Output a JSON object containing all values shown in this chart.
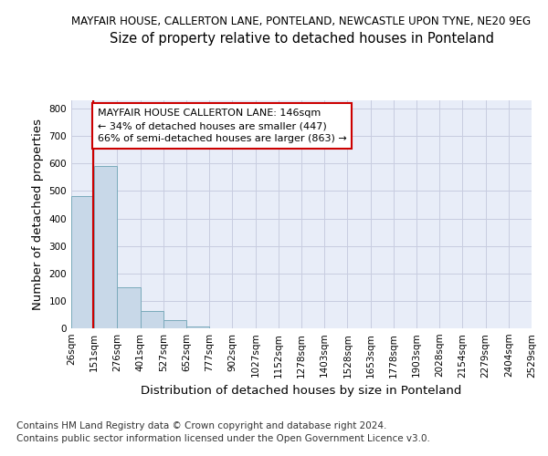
{
  "title1": "MAYFAIR HOUSE, CALLERTON LANE, PONTELAND, NEWCASTLE UPON TYNE, NE20 9EG",
  "title2": "Size of property relative to detached houses in Ponteland",
  "xlabel": "Distribution of detached houses by size in Ponteland",
  "ylabel": "Number of detached properties",
  "footer1": "Contains HM Land Registry data © Crown copyright and database right 2024.",
  "footer2": "Contains public sector information licensed under the Open Government Licence v3.0.",
  "bin_edges": [
    26,
    151,
    276,
    401,
    527,
    652,
    777,
    902,
    1027,
    1152,
    1278,
    1403,
    1528,
    1653,
    1778,
    1903,
    2028,
    2154,
    2279,
    2404,
    2529
  ],
  "bar_heights": [
    480,
    590,
    150,
    62,
    30,
    8,
    0,
    0,
    0,
    0,
    0,
    0,
    0,
    0,
    0,
    0,
    0,
    0,
    0,
    0
  ],
  "bar_color": "#c8d8e8",
  "bar_edge_color": "#7aaabb",
  "grid_color": "#c8cce0",
  "bg_color": "#e8edf8",
  "red_line_x": 146,
  "annotation_line1": "MAYFAIR HOUSE CALLERTON LANE: 146sqm",
  "annotation_line2": "← 34% of detached houses are smaller (447)",
  "annotation_line3": "66% of semi-detached houses are larger (863) →",
  "annotation_box_color": "white",
  "annotation_box_edge_color": "#cc0000",
  "ylim": [
    0,
    830
  ],
  "yticks": [
    0,
    100,
    200,
    300,
    400,
    500,
    600,
    700,
    800
  ],
  "title1_fontsize": 8.5,
  "title2_fontsize": 10.5,
  "axis_label_fontsize": 9.5,
  "tick_fontsize": 7.5,
  "annotation_fontsize": 8.0,
  "footer_fontsize": 7.5
}
